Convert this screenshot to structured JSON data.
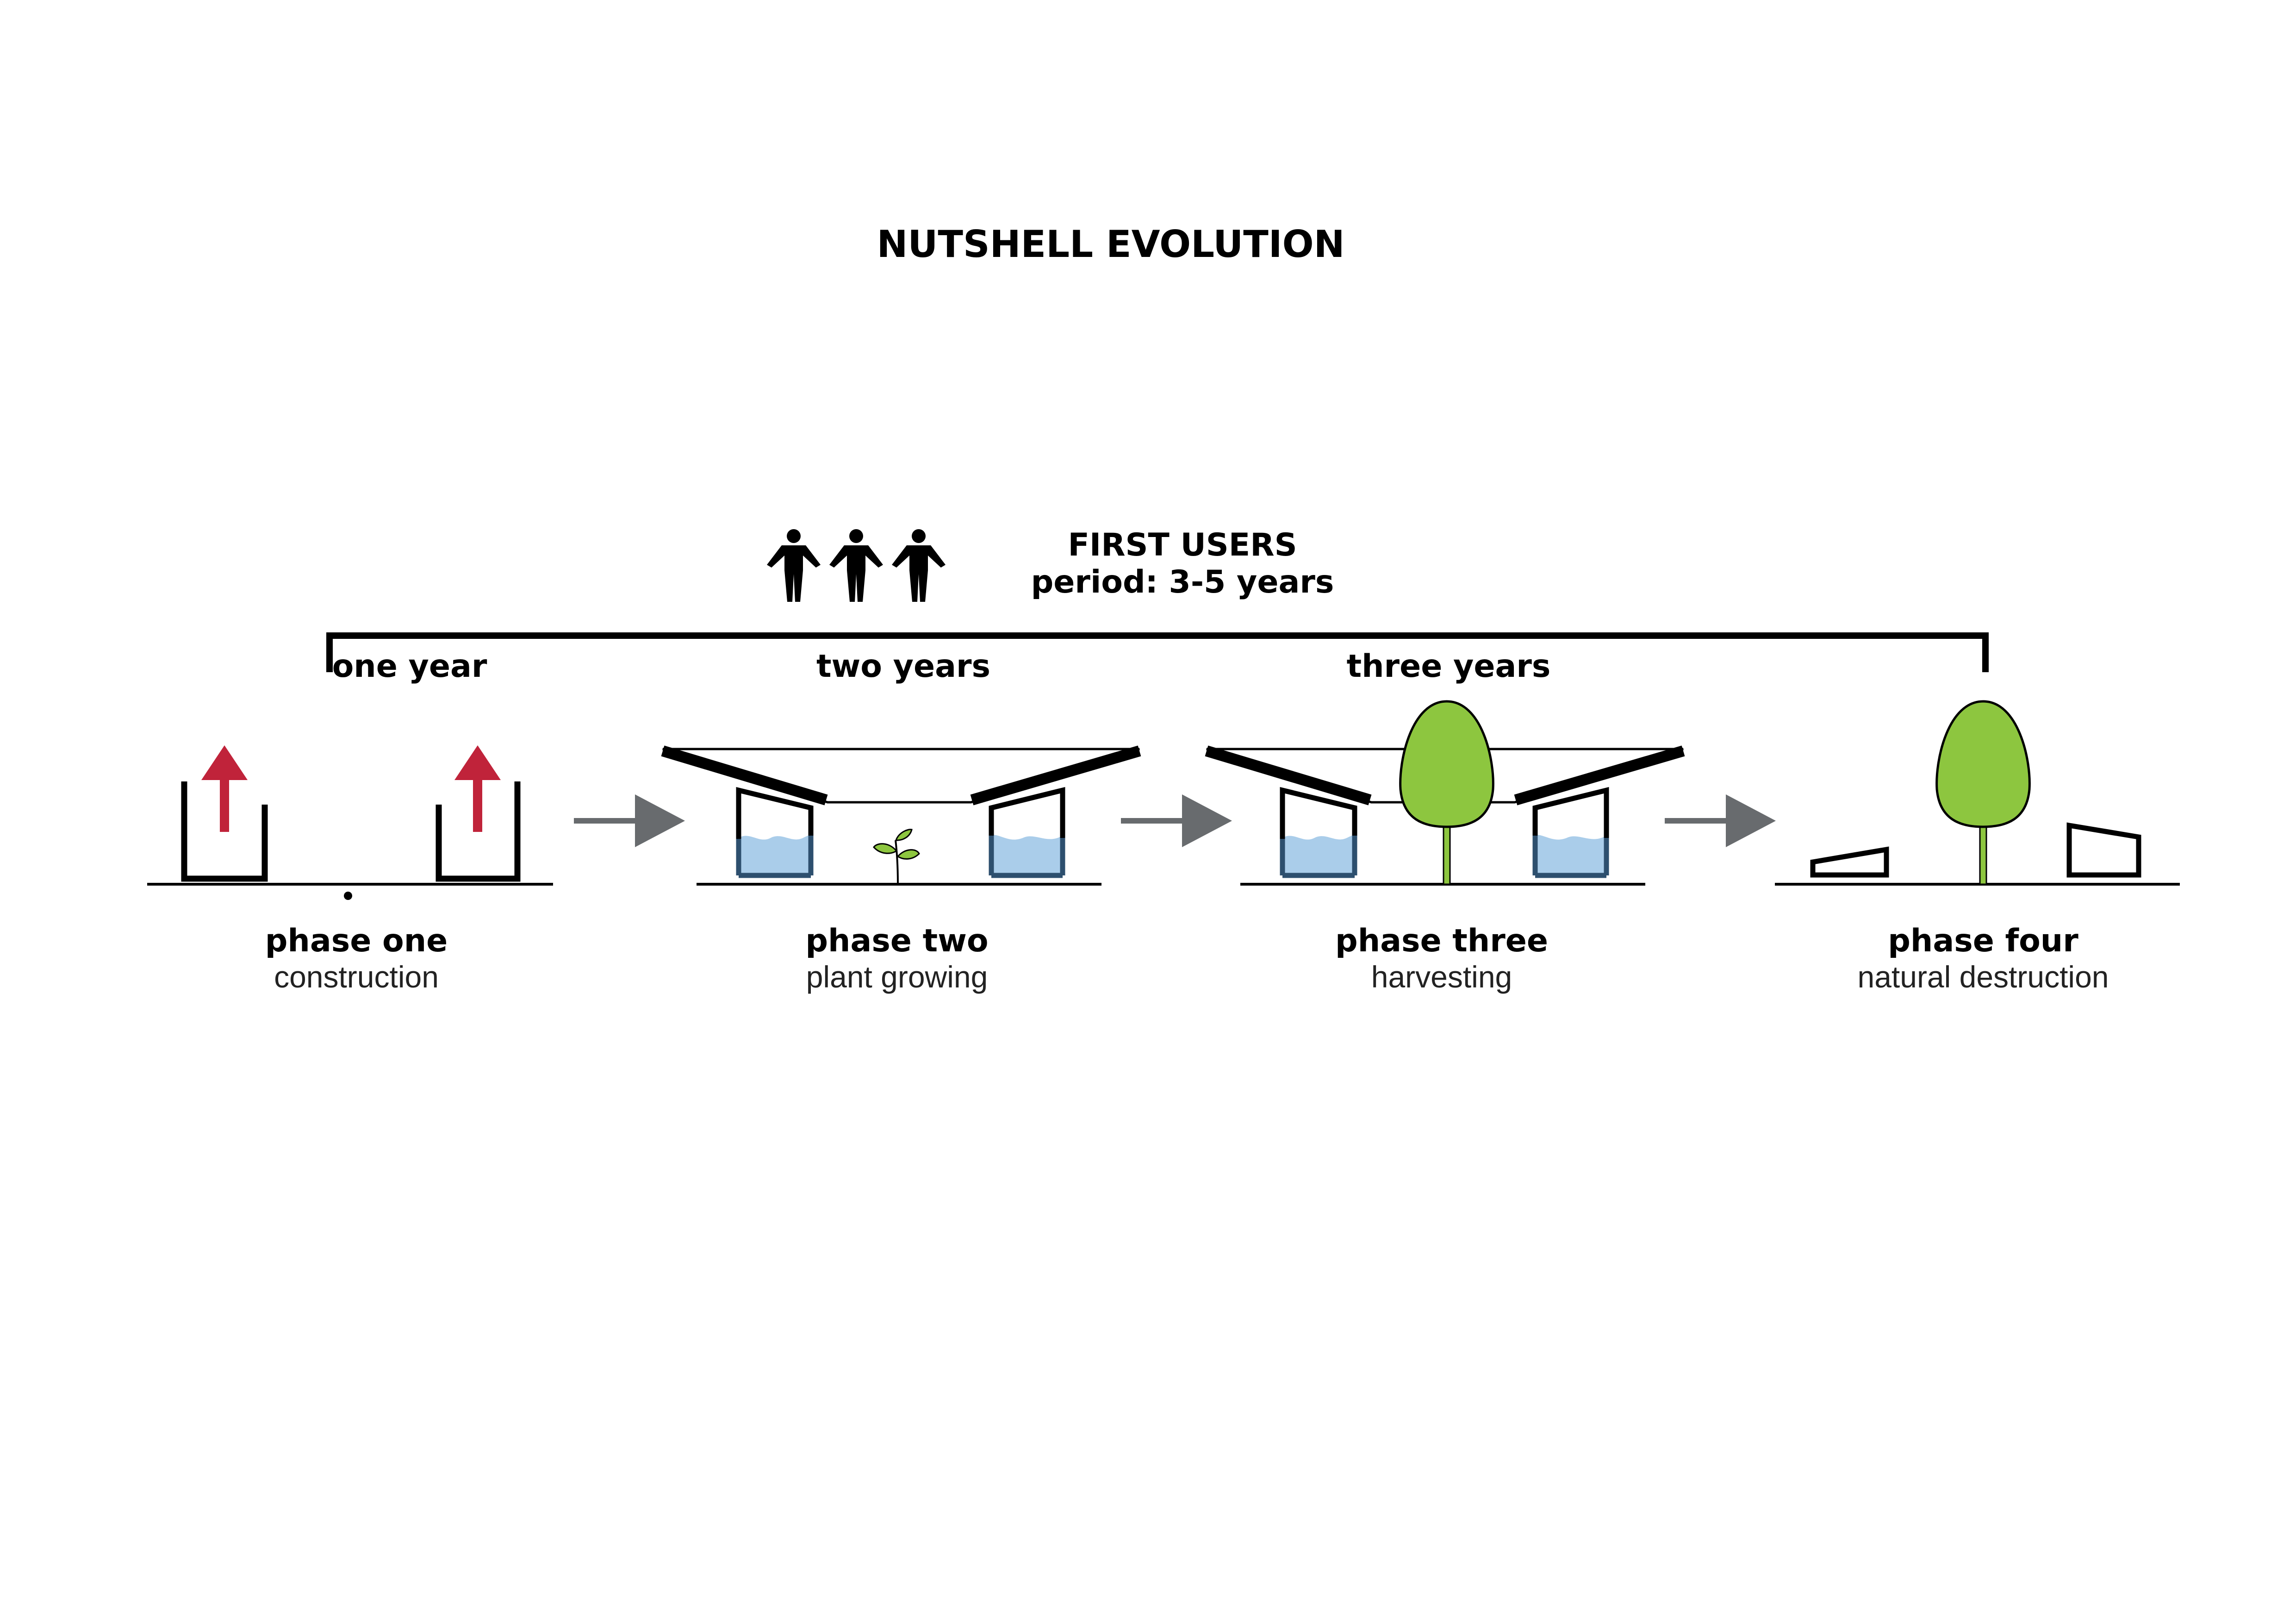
{
  "title": "NUTSHELL EVOLUTION",
  "users": {
    "heading": "FIRST USERS",
    "period": "period: 3-5 years"
  },
  "timeline": {
    "one": "one year",
    "two": "two years",
    "three": "three years"
  },
  "phases": [
    {
      "name": "phase one",
      "desc": "construction"
    },
    {
      "name": "phase two",
      "desc": "plant growing"
    },
    {
      "name": "phase three",
      "desc": "harvesting"
    },
    {
      "name": "phase four",
      "desc": "natural destruction"
    }
  ],
  "icons": {
    "people": "person-icon",
    "construction": "arrow-up-icon",
    "transition": "arrow-right-icon",
    "plant": "seedling-icon",
    "tree": "tree-icon",
    "water": "water-tank-icon"
  },
  "colors": {
    "construction_arrow": "#c0233a",
    "transition_arrow": "#686b6e",
    "tree_fill": "#8dc63f",
    "water_fill": "#aacdea",
    "tank_stroke": "#2d4f6e"
  }
}
